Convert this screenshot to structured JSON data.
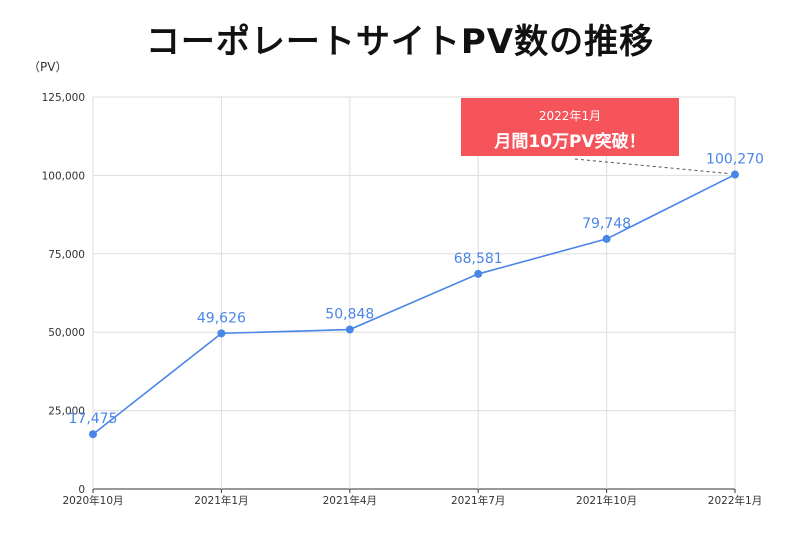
{
  "title": "コーポレートサイトPV数の推移",
  "unit_label": "（PV）",
  "callout": {
    "line1": "2022年1月",
    "line2": "月間10万PV突破！"
  },
  "colors": {
    "series": "#4a86e8",
    "callout_bg": "#f5545a",
    "grid": "#dddddd"
  },
  "chart_data": {
    "type": "line",
    "title": "コーポレートサイトPV数の推移",
    "ylabel": "（PV）",
    "xlabel": "",
    "categories": [
      "2020年10月",
      "2021年1月",
      "2021年4月",
      "2021年7月",
      "2021年10月",
      "2022年1月"
    ],
    "values": [
      17475,
      49626,
      50848,
      68581,
      79748,
      100270
    ],
    "data_labels": [
      "17,475",
      "49,626",
      "50,848",
      "68,581",
      "79,748",
      "100,270"
    ],
    "ylim": [
      0,
      125000
    ],
    "yticks": [
      0,
      25000,
      50000,
      75000,
      100000,
      125000
    ],
    "ytick_labels": [
      "0",
      "25,000",
      "50,000",
      "75,000",
      "100,000",
      "125,000"
    ],
    "grid": true,
    "legend": "none"
  }
}
